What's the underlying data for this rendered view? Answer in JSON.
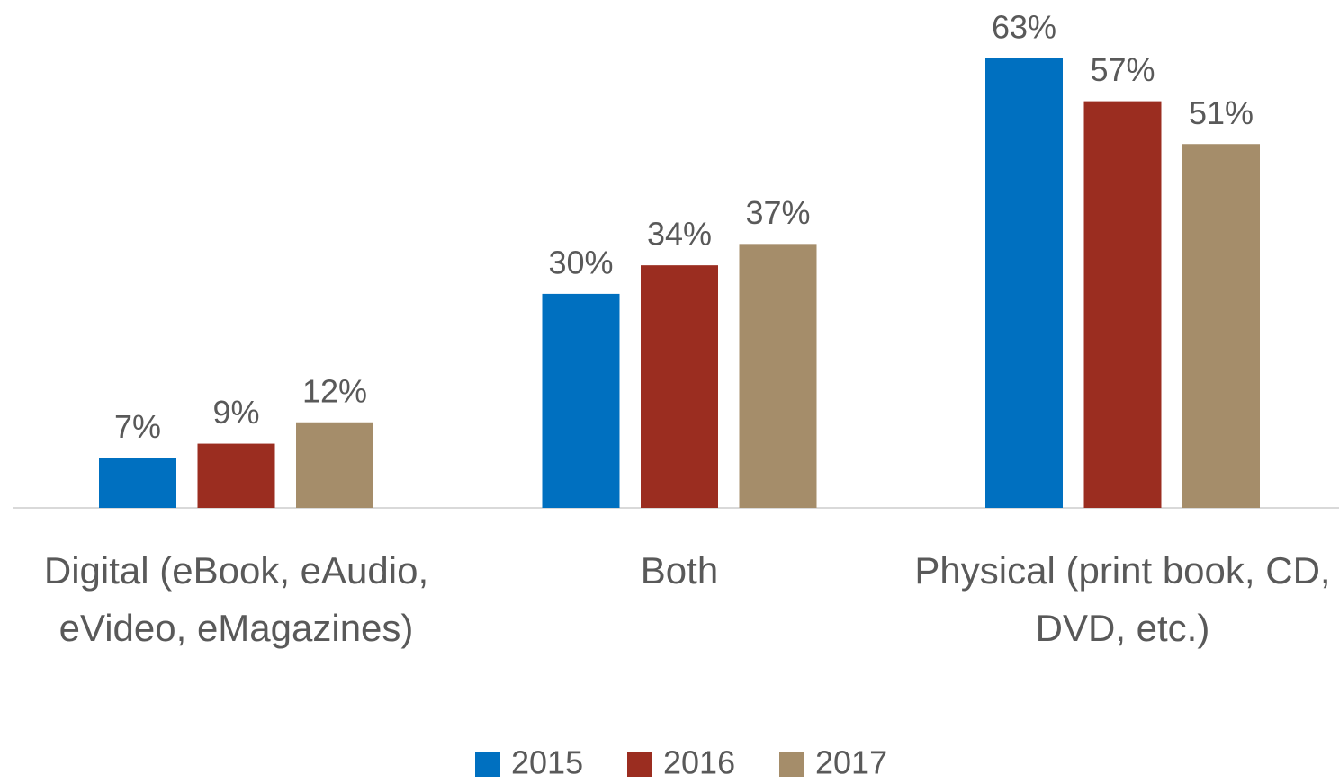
{
  "chart_data": {
    "type": "bar",
    "categories": [
      "Digital (eBook, eAudio, eVideo, eMagazines)",
      "Both",
      "Physical (print book, CD, DVD, etc.)"
    ],
    "series": [
      {
        "name": "2015",
        "color": "#0070c0",
        "values": [
          7,
          30,
          63
        ],
        "value_labels": [
          "7%",
          "30%",
          "63%"
        ]
      },
      {
        "name": "2016",
        "color": "#9b2d20",
        "values": [
          9,
          34,
          57
        ],
        "value_labels": [
          "9%",
          "34%",
          "57%"
        ]
      },
      {
        "name": "2017",
        "color": "#a58d6a",
        "values": [
          12,
          37,
          51
        ],
        "value_labels": [
          "12%",
          "37%",
          "51%"
        ]
      }
    ],
    "legend": "bottom"
  }
}
